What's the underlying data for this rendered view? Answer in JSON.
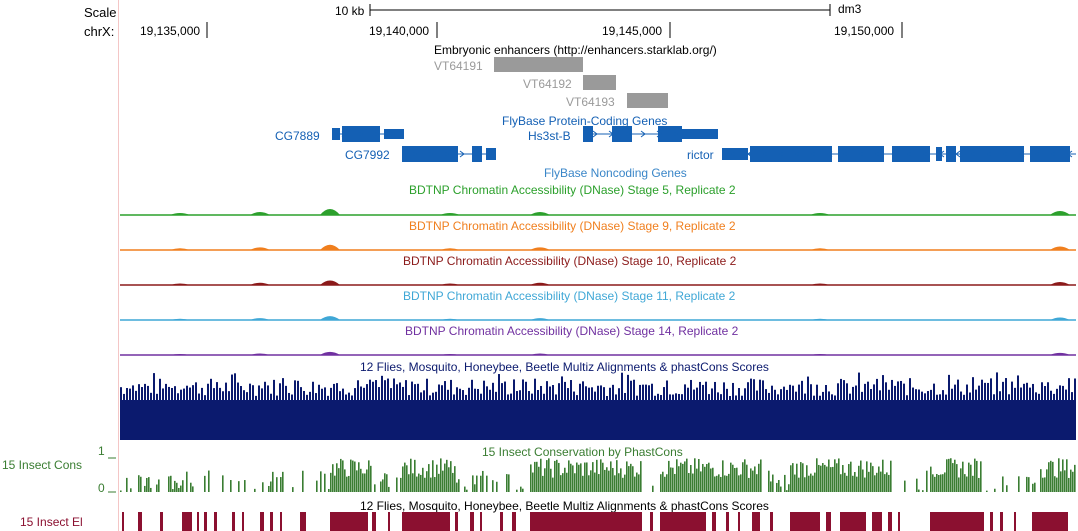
{
  "ruler": {
    "scale_label": "Scale",
    "chrom_label": "chrX:",
    "scale_bar_label": "10 kb",
    "assembly": "dm3",
    "ticks": [
      "19,135,000",
      "19,140,000",
      "19,145,000",
      "19,150,000"
    ]
  },
  "tracks": {
    "enhancers": {
      "title": "Embryonic enhancers (http://enhancers.starklab.org/)",
      "items": [
        "VT64191",
        "VT64192",
        "VT64193"
      ]
    },
    "genes": {
      "title": "FlyBase Protein-Coding Genes",
      "items": [
        "CG7889",
        "CG7992",
        "Hs3st-B",
        "rictor"
      ]
    },
    "noncoding": {
      "title": "FlyBase Noncoding Genes"
    },
    "dnase": [
      {
        "title": "BDTNP Chromatin Accessibility (DNase) Stage 5, Replicate 2",
        "color": "#2ca02c"
      },
      {
        "title": "BDTNP Chromatin Accessibility (DNase) Stage 9, Replicate 2",
        "color": "#f07f1e"
      },
      {
        "title": "BDTNP Chromatin Accessibility (DNase) Stage 10, Replicate 2",
        "color": "#8b1a1a"
      },
      {
        "title": "BDTNP Chromatin Accessibility (DNase) Stage 11, Replicate 2",
        "color": "#3fa7d6"
      },
      {
        "title": "BDTNP Chromatin Accessibility (DNase) Stage 14, Replicate 2",
        "color": "#7030a0"
      }
    ],
    "multiz": {
      "title": "12 Flies, Mosquito, Honeybee, Beetle Multiz Alignments & phastCons Scores",
      "color": "#0b1a6e"
    },
    "phastcons": {
      "title": "15 Insect Conservation by PhastCons",
      "side_label": "15 Insect Cons",
      "y_max": "1",
      "y_min": "0",
      "color": "#3a7d32"
    },
    "elements": {
      "title": "12 Flies, Mosquito, Honeybee, Beetle Multiz Alignments & phastCons Scores",
      "side_label": "15 Insect El",
      "color": "#8b1030"
    }
  },
  "colors": {
    "gene": "#1460b4",
    "enhancer": "#9a9a9a",
    "enhancer_label": "#9a9a9a",
    "side_label_el": "#8b1030"
  }
}
